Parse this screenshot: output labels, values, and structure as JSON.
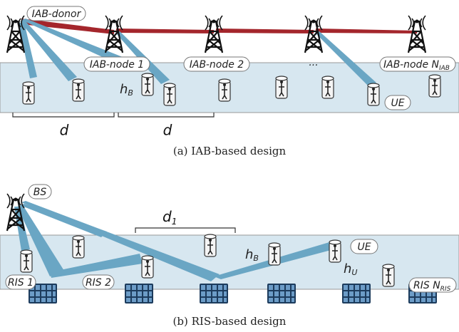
{
  "panel_a": {
    "donor_label": "IAB-donor",
    "node_labels": [
      {
        "text": "IAB-node 1"
      },
      {
        "text": "IAB-node 2"
      },
      {
        "text": "IAB-node N",
        "sub": "IAB"
      }
    ],
    "ellipsis": "...",
    "ue_label": "UE",
    "height_label": {
      "text": "h",
      "sub": "B"
    },
    "spacing_labels": [
      "d",
      "d"
    ],
    "caption": "(a) IAB-based design"
  },
  "panel_b": {
    "bs_label": "BS",
    "spacing_label": {
      "text": "d",
      "sub": "1"
    },
    "ue_label": "UE",
    "height_labels": [
      {
        "text": "h",
        "sub": "B"
      },
      {
        "text": "h",
        "sub": "U"
      }
    ],
    "ris_labels": [
      {
        "text": "RIS 1"
      },
      {
        "text": "RIS 2"
      },
      {
        "text": "RIS N",
        "sub": "RIS"
      }
    ],
    "caption": "(b) RIS-based design"
  }
}
